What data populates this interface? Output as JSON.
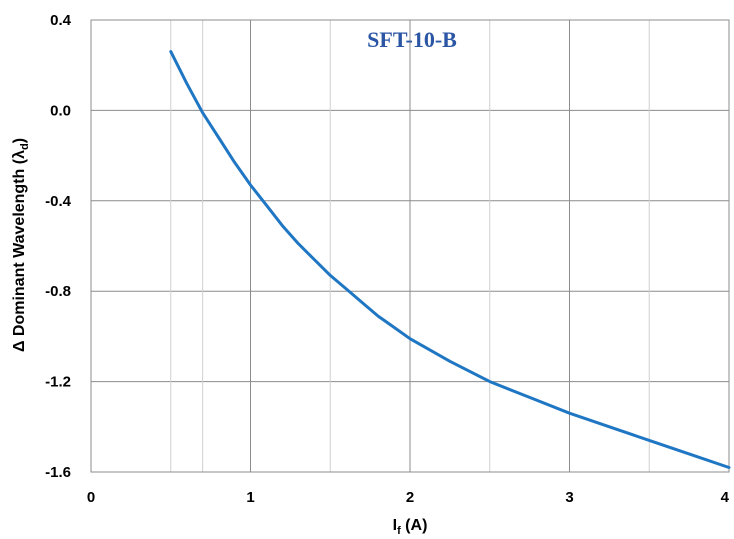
{
  "chart_data": {
    "type": "line",
    "title": "",
    "label": "SFT-10-B",
    "xlabel": {
      "main": "I",
      "sub": "f",
      "rest": " (A)"
    },
    "ylabel": {
      "main": "Δ Dominant Wavelength (λ",
      "sub": "d",
      "rest": ")"
    },
    "xlim": [
      0,
      4
    ],
    "ylim": [
      -1.6,
      0.4
    ],
    "x_ticks": [
      "0",
      "1",
      "2",
      "3",
      "4"
    ],
    "y_ticks": [
      "0.4",
      "0.0",
      "-0.4",
      "-0.8",
      "-1.2",
      "-1.6"
    ],
    "x_tick_values": [
      0,
      1,
      2,
      3,
      4
    ],
    "y_tick_values": [
      0.4,
      0.0,
      -0.4,
      -0.8,
      -1.2,
      -1.6
    ],
    "x_minor_grid": [
      0.5,
      0.7
    ],
    "grid": true,
    "series": [
      {
        "color": "#1f77c4",
        "x": [
          0.5,
          0.6,
          0.7,
          0.8,
          0.9,
          1.0,
          1.1,
          1.2,
          1.3,
          1.4,
          1.5,
          1.6,
          1.7,
          1.8,
          1.9,
          2.0,
          2.25,
          2.5,
          2.75,
          3.0,
          3.25,
          3.5,
          3.75,
          4.0
        ],
        "y": [
          0.26,
          0.12,
          -0.01,
          -0.12,
          -0.23,
          -0.33,
          -0.42,
          -0.51,
          -0.59,
          -0.66,
          -0.73,
          -0.79,
          -0.85,
          -0.91,
          -0.96,
          -1.01,
          -1.11,
          -1.2,
          -1.27,
          -1.34,
          -1.4,
          -1.46,
          -1.52,
          -1.58
        ]
      }
    ]
  }
}
